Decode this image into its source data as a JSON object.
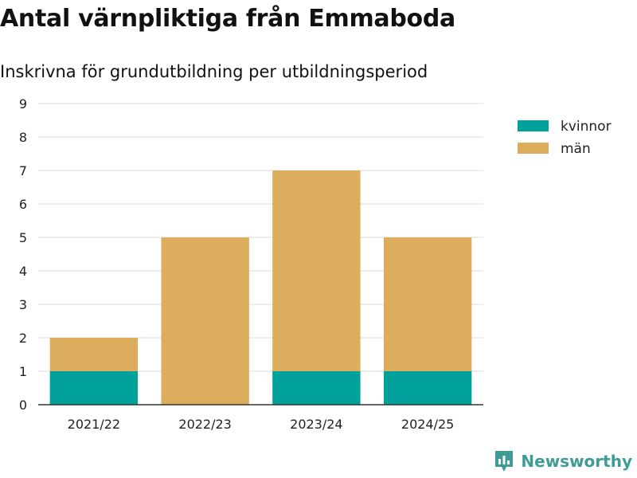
{
  "chart_data": {
    "type": "bar",
    "stacked": true,
    "title": "Antal värnpliktiga från Emmaboda",
    "subtitle": "Inskrivna för grundutbildning per utbildningsperiod",
    "categories": [
      "2021/22",
      "2022/23",
      "2023/24",
      "2024/25"
    ],
    "series": [
      {
        "name": "kvinnor",
        "values": [
          1,
          0,
          1,
          1
        ],
        "color": "#00a19a"
      },
      {
        "name": "män",
        "values": [
          1,
          5,
          6,
          4
        ],
        "color": "#dbad5c"
      }
    ],
    "ylim": [
      0,
      9
    ],
    "yticks": [
      "0",
      "1",
      "2",
      "3",
      "4",
      "5",
      "6",
      "7",
      "8",
      "9"
    ],
    "grid": true,
    "legend": "top-right"
  },
  "brand": {
    "name": "Newsworthy",
    "icon": "newsworthy-logo-icon",
    "color": "#3f9b96"
  }
}
